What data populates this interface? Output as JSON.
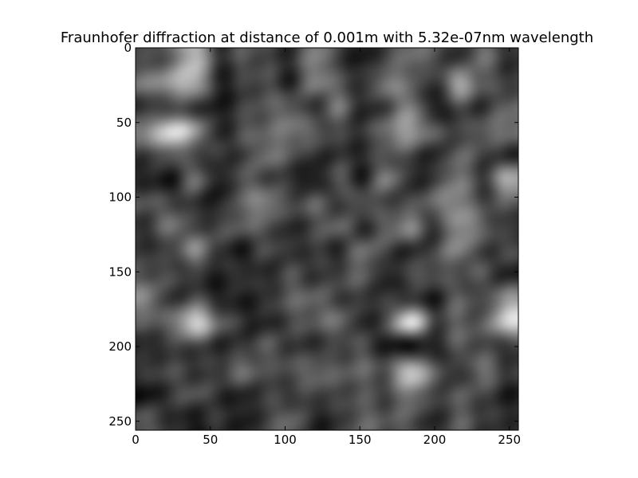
{
  "chart_data": {
    "type": "heatmap",
    "title": "Fraunhofer diffraction at distance of 0.001m with 5.32e-07nm wavelength",
    "xlabel": "",
    "ylabel": "",
    "xlim": [
      0,
      256
    ],
    "ylim": [
      256,
      0
    ],
    "x_ticks": [
      0,
      50,
      100,
      150,
      200,
      250
    ],
    "y_ticks": [
      0,
      50,
      100,
      150,
      200,
      250
    ],
    "colormap": "gray",
    "grid": false,
    "legend": "none",
    "grid_size": 16,
    "values": [
      [
        0.3,
        0.42,
        0.74,
        0.22,
        0.34,
        0.28,
        0.2,
        0.52,
        0.26,
        0.12,
        0.3,
        0.44,
        0.34,
        0.22,
        0.44,
        0.22
      ],
      [
        0.48,
        0.64,
        0.7,
        0.16,
        0.24,
        0.32,
        0.18,
        0.5,
        0.36,
        0.22,
        0.5,
        0.4,
        0.2,
        0.64,
        0.38,
        0.26
      ],
      [
        0.22,
        0.3,
        0.26,
        0.12,
        0.26,
        0.36,
        0.4,
        0.22,
        0.46,
        0.16,
        0.3,
        0.52,
        0.12,
        0.3,
        0.22,
        0.4
      ],
      [
        0.56,
        0.86,
        0.62,
        0.18,
        0.34,
        0.4,
        0.48,
        0.38,
        0.28,
        0.22,
        0.48,
        0.62,
        0.36,
        0.26,
        0.4,
        0.46
      ],
      [
        0.26,
        0.4,
        0.28,
        0.22,
        0.26,
        0.46,
        0.34,
        0.2,
        0.22,
        0.18,
        0.34,
        0.3,
        0.16,
        0.4,
        0.28,
        0.2
      ],
      [
        0.16,
        0.12,
        0.44,
        0.12,
        0.36,
        0.3,
        0.2,
        0.1,
        0.36,
        0.16,
        0.5,
        0.18,
        0.26,
        0.5,
        0.24,
        0.66
      ],
      [
        0.34,
        0.3,
        0.22,
        0.14,
        0.42,
        0.52,
        0.3,
        0.38,
        0.24,
        0.36,
        0.28,
        0.3,
        0.44,
        0.56,
        0.3,
        0.36
      ],
      [
        0.22,
        0.46,
        0.28,
        0.3,
        0.38,
        0.34,
        0.18,
        0.3,
        0.4,
        0.2,
        0.4,
        0.52,
        0.22,
        0.58,
        0.42,
        0.22
      ],
      [
        0.24,
        0.26,
        0.54,
        0.24,
        0.12,
        0.3,
        0.2,
        0.26,
        0.18,
        0.44,
        0.28,
        0.18,
        0.3,
        0.52,
        0.26,
        0.3
      ],
      [
        0.34,
        0.3,
        0.22,
        0.14,
        0.24,
        0.16,
        0.32,
        0.22,
        0.3,
        0.38,
        0.14,
        0.32,
        0.34,
        0.3,
        0.34,
        0.16
      ],
      [
        0.52,
        0.22,
        0.34,
        0.16,
        0.14,
        0.22,
        0.38,
        0.4,
        0.28,
        0.24,
        0.22,
        0.24,
        0.14,
        0.4,
        0.26,
        0.6
      ],
      [
        0.36,
        0.44,
        0.82,
        0.42,
        0.2,
        0.16,
        0.3,
        0.36,
        0.44,
        0.18,
        0.34,
        0.86,
        0.3,
        0.4,
        0.36,
        0.8
      ],
      [
        0.16,
        0.24,
        0.3,
        0.18,
        0.22,
        0.36,
        0.24,
        0.22,
        0.26,
        0.32,
        0.12,
        0.1,
        0.14,
        0.36,
        0.3,
        0.24
      ],
      [
        0.24,
        0.3,
        0.22,
        0.28,
        0.44,
        0.3,
        0.34,
        0.42,
        0.36,
        0.4,
        0.36,
        0.78,
        0.4,
        0.2,
        0.46,
        0.26
      ],
      [
        0.08,
        0.24,
        0.34,
        0.2,
        0.16,
        0.26,
        0.24,
        0.3,
        0.28,
        0.34,
        0.28,
        0.52,
        0.28,
        0.34,
        0.3,
        0.14
      ],
      [
        0.34,
        0.2,
        0.12,
        0.22,
        0.12,
        0.28,
        0.4,
        0.16,
        0.22,
        0.4,
        0.34,
        0.36,
        0.16,
        0.38,
        0.24,
        0.2
      ]
    ]
  }
}
